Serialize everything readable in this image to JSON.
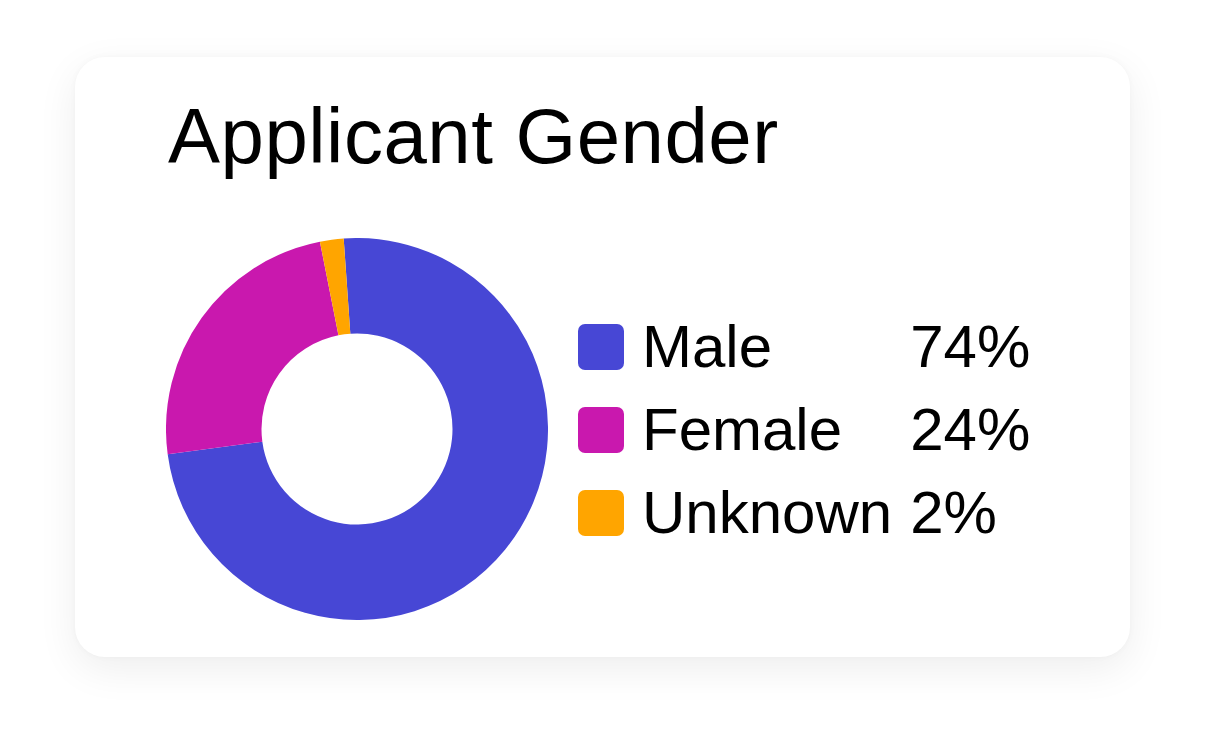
{
  "chart_data": {
    "type": "donut",
    "title": "Applicant Gender",
    "categories": [
      "Male",
      "Female",
      "Unknown"
    ],
    "values": [
      74,
      24,
      2
    ],
    "colors": [
      "#4747d5",
      "#c918ae",
      "#ffa500"
    ],
    "value_labels": [
      "74%",
      "24%",
      "2%"
    ],
    "legend": "right"
  }
}
